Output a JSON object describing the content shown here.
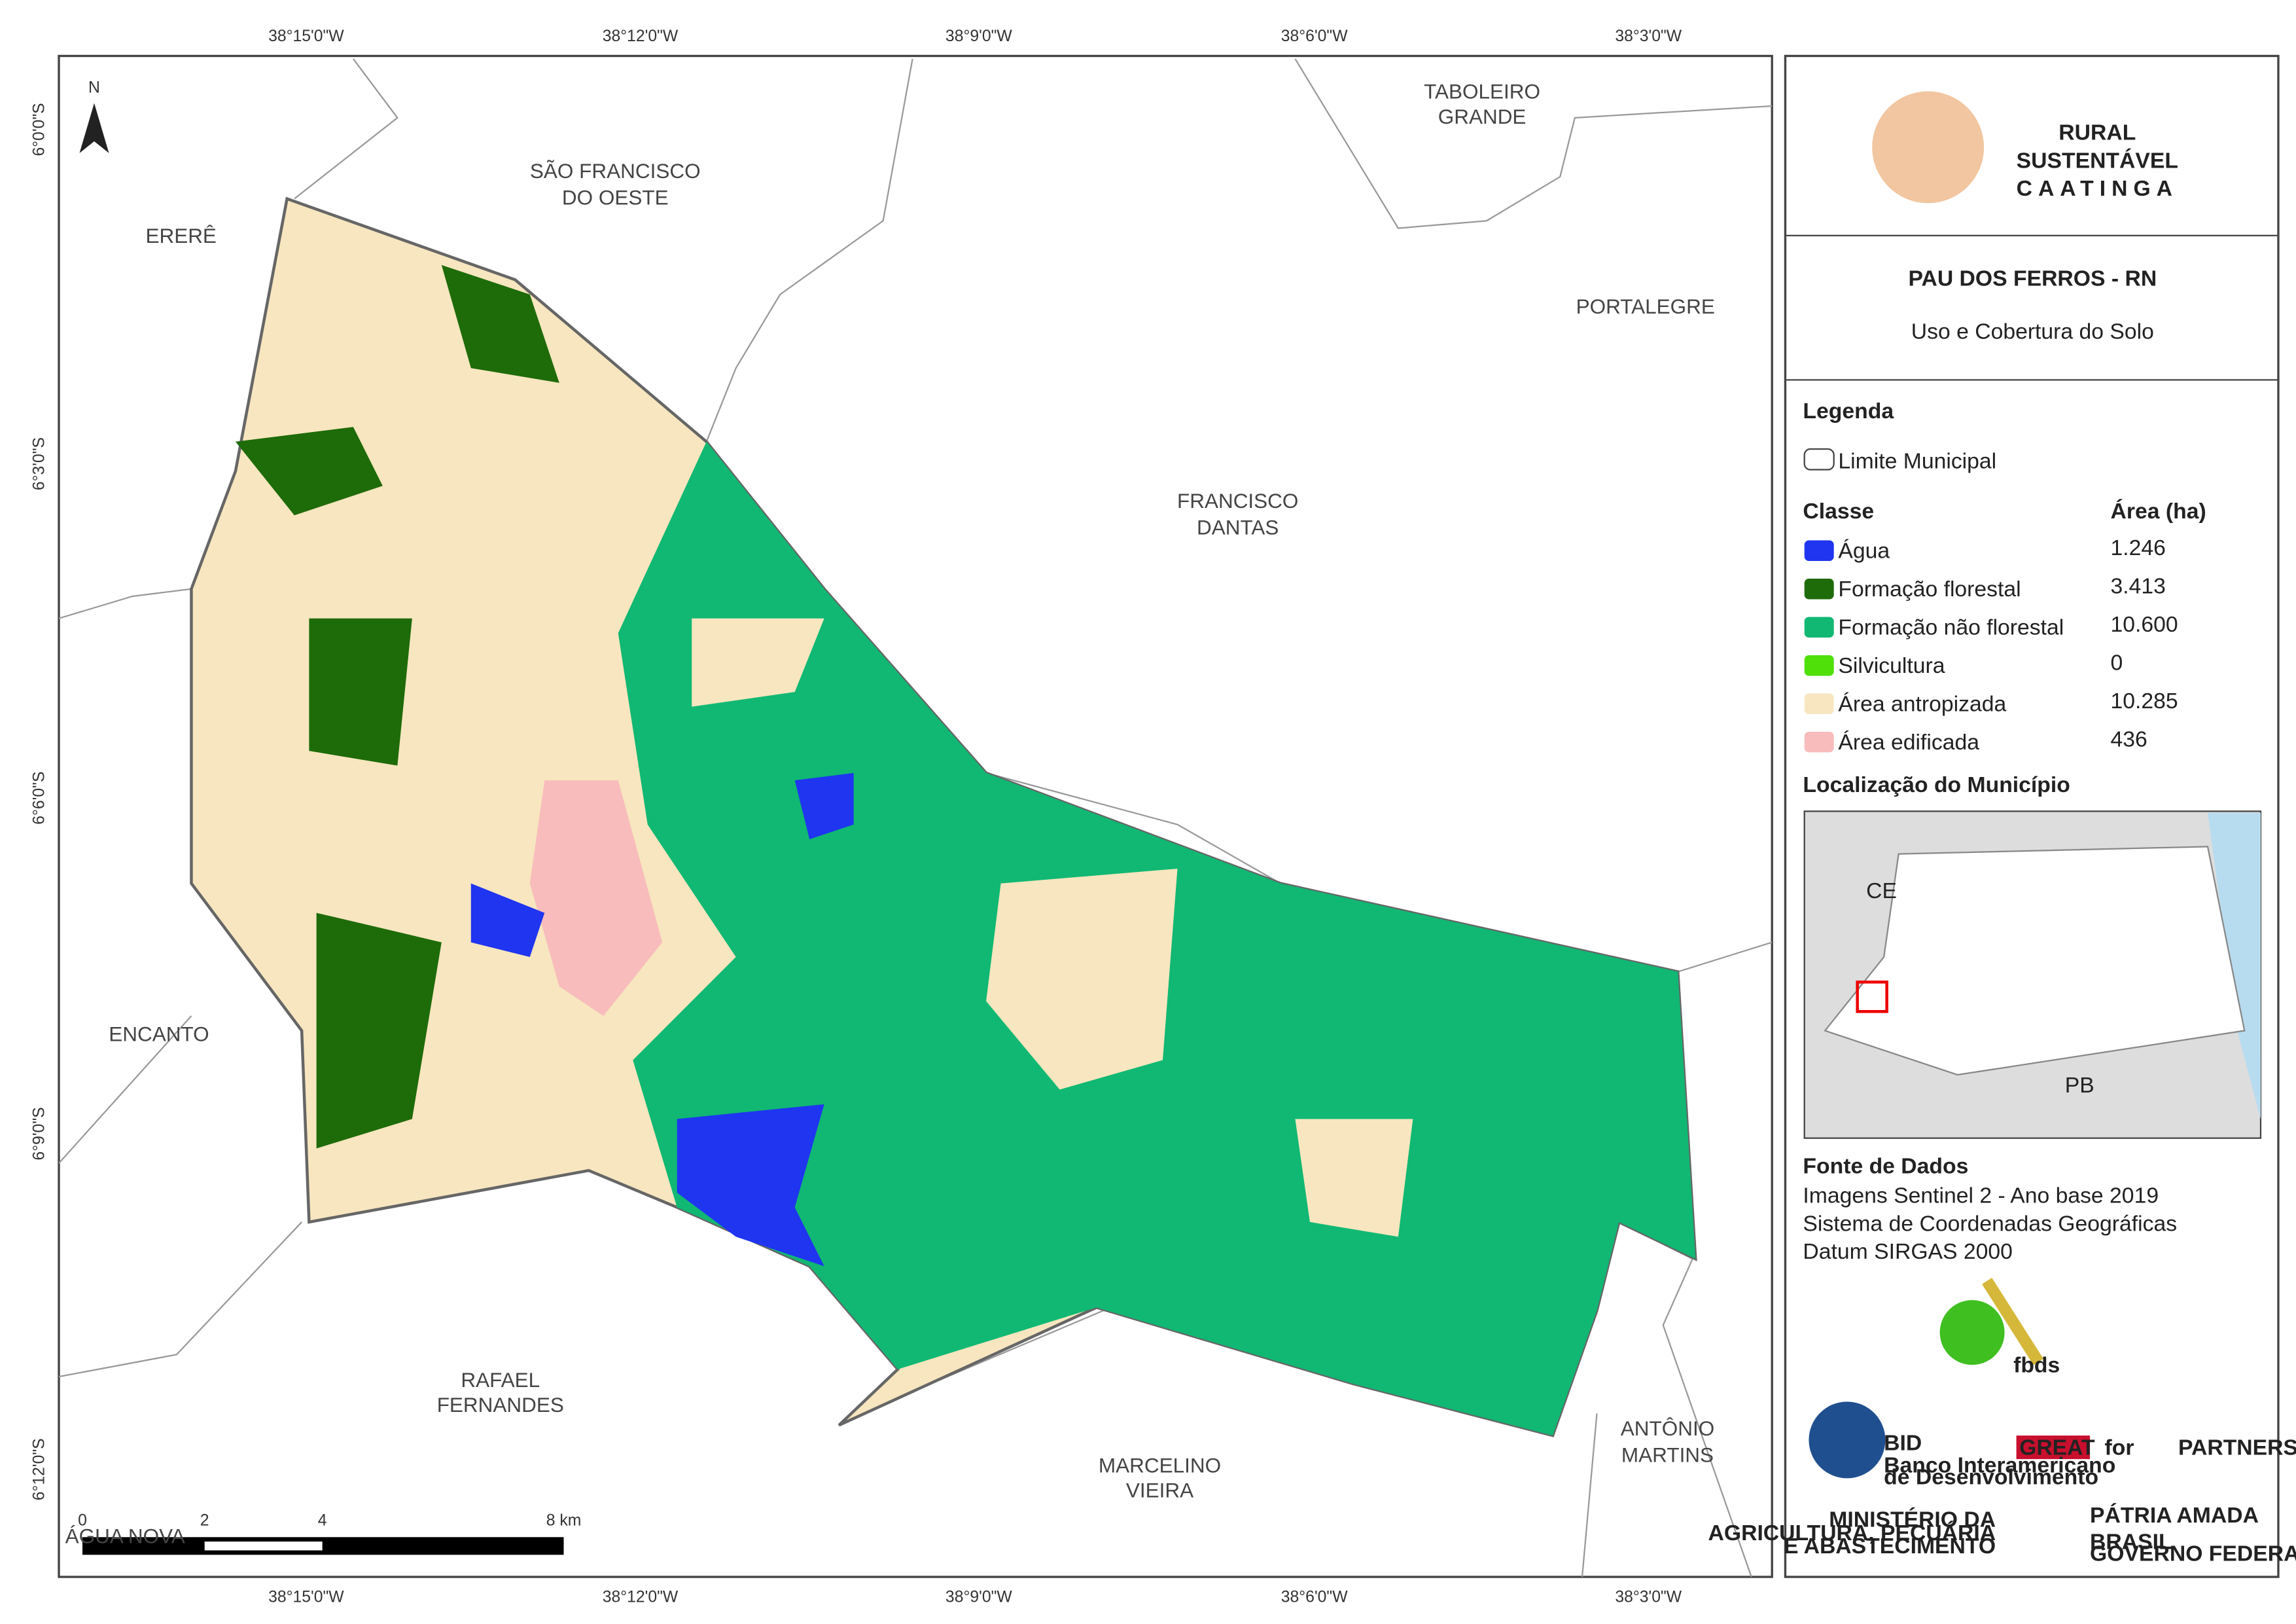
{
  "map": {
    "lon_labels": [
      "38°15'0\"W",
      "38°12'0\"W",
      "38°9'0\"W",
      "38°6'0\"W",
      "38°3'0\"W"
    ],
    "lat_labels": [
      "6°0'0\"S",
      "6°3'0\"S",
      "6°6'0\"S",
      "6°9'0\"S",
      "6°12'0\"S"
    ],
    "north": "N",
    "places": [
      "ERERÊ",
      "SÃO FRANCISCO",
      "DO OESTE",
      "TABOLEIRO",
      "GRANDE",
      "PORTALEGRE",
      "FRANCISCO",
      "DANTAS",
      "ENCANTO",
      "RAFAEL",
      "FERNANDES",
      "MARCELINO",
      "VIEIRA",
      "ANTÔNIO",
      "MARTINS",
      "ÁGUA NOVA"
    ],
    "scale_labels": [
      "0",
      "2",
      "4",
      "8 km"
    ]
  },
  "panel": {
    "logo": {
      "title": "RURAL",
      "sub": "SUSTENTÁVEL",
      "region": "CAATINGA"
    },
    "title": "PAU DOS FERROS - RN",
    "subtitle": "Uso e Cobertura do Solo",
    "legend": {
      "heading": "Legenda",
      "boundary": "Limite Municipal",
      "class_header": "Classe",
      "area_header": "Área (ha)",
      "rows": [
        [
          "Água",
          "1.246"
        ],
        [
          "Formação florestal",
          "3.413"
        ],
        [
          "Formação não florestal",
          "10.600"
        ],
        [
          "Silvicultura",
          "0"
        ],
        [
          "Área antropizada",
          "10.285"
        ],
        [
          "Área edificada",
          "436"
        ]
      ]
    },
    "location": {
      "heading": "Localização do Município",
      "labels": [
        "CE",
        "PB"
      ]
    },
    "sources": {
      "heading": "Fonte de Dados",
      "lines": [
        "Imagens Sentinel 2 - Ano base 2019",
        "Sistema de Coordenadas Geográficas",
        "Datum SIRGAS 2000"
      ]
    },
    "partners": [
      "fbds",
      "BID",
      "Banco Interamericano",
      "de Desenvolvimento",
      "GREAT",
      "for",
      "PARTNERSHIP",
      "MINISTÉRIO DA",
      "AGRICULTURA, PECUÁRIA",
      "E ABASTECIMENTO",
      "PÁTRIA AMADA",
      "BRASIL",
      "GOVERNO FEDERAL"
    ]
  }
}
